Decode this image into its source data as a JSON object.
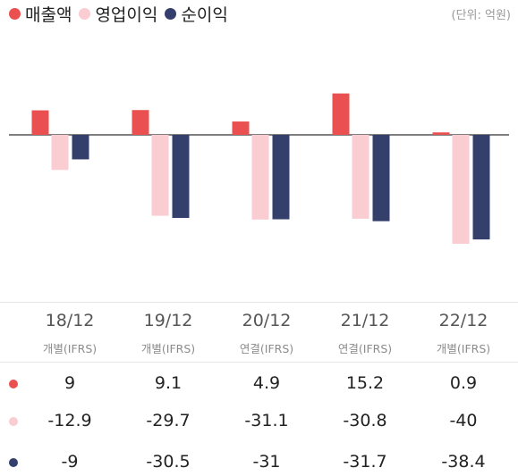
{
  "legend": [
    {
      "label": "매출액",
      "color": "#e9504f"
    },
    {
      "label": "영업이익",
      "color": "#f9cdd1"
    },
    {
      "label": "순이익",
      "color": "#34406b"
    }
  ],
  "unit_label": "(단위: 억원)",
  "periods": [
    {
      "date": "18/12",
      "type": "개별(IFRS)"
    },
    {
      "date": "19/12",
      "type": "개별(IFRS)"
    },
    {
      "date": "20/12",
      "type": "연결(IFRS)"
    },
    {
      "date": "21/12",
      "type": "연결(IFRS)"
    },
    {
      "date": "22/12",
      "type": "개별(IFRS)"
    }
  ],
  "table": {
    "rows": [
      [
        "9",
        "9.1",
        "4.9",
        "15.2",
        "0.9"
      ],
      [
        "-12.9",
        "-29.7",
        "-31.1",
        "-30.8",
        "-40"
      ],
      [
        "-9",
        "-30.5",
        "-31",
        "-31.7",
        "-38.4"
      ]
    ]
  },
  "chart_data": {
    "type": "bar",
    "categories": [
      "18/12",
      "19/12",
      "20/12",
      "21/12",
      "22/12"
    ],
    "series": [
      {
        "name": "매출액",
        "values": [
          9,
          9.1,
          4.9,
          15.2,
          0.9
        ],
        "color": "#e9504f"
      },
      {
        "name": "영업이익",
        "values": [
          -12.9,
          -29.7,
          -31.1,
          -30.8,
          -40
        ],
        "color": "#f9cdd1"
      },
      {
        "name": "순이익",
        "values": [
          -9,
          -30.5,
          -31,
          -31.7,
          -38.4
        ],
        "color": "#34406b"
      }
    ],
    "xlabel": "",
    "ylabel": "",
    "grid": false,
    "legend_position": "top-left"
  }
}
